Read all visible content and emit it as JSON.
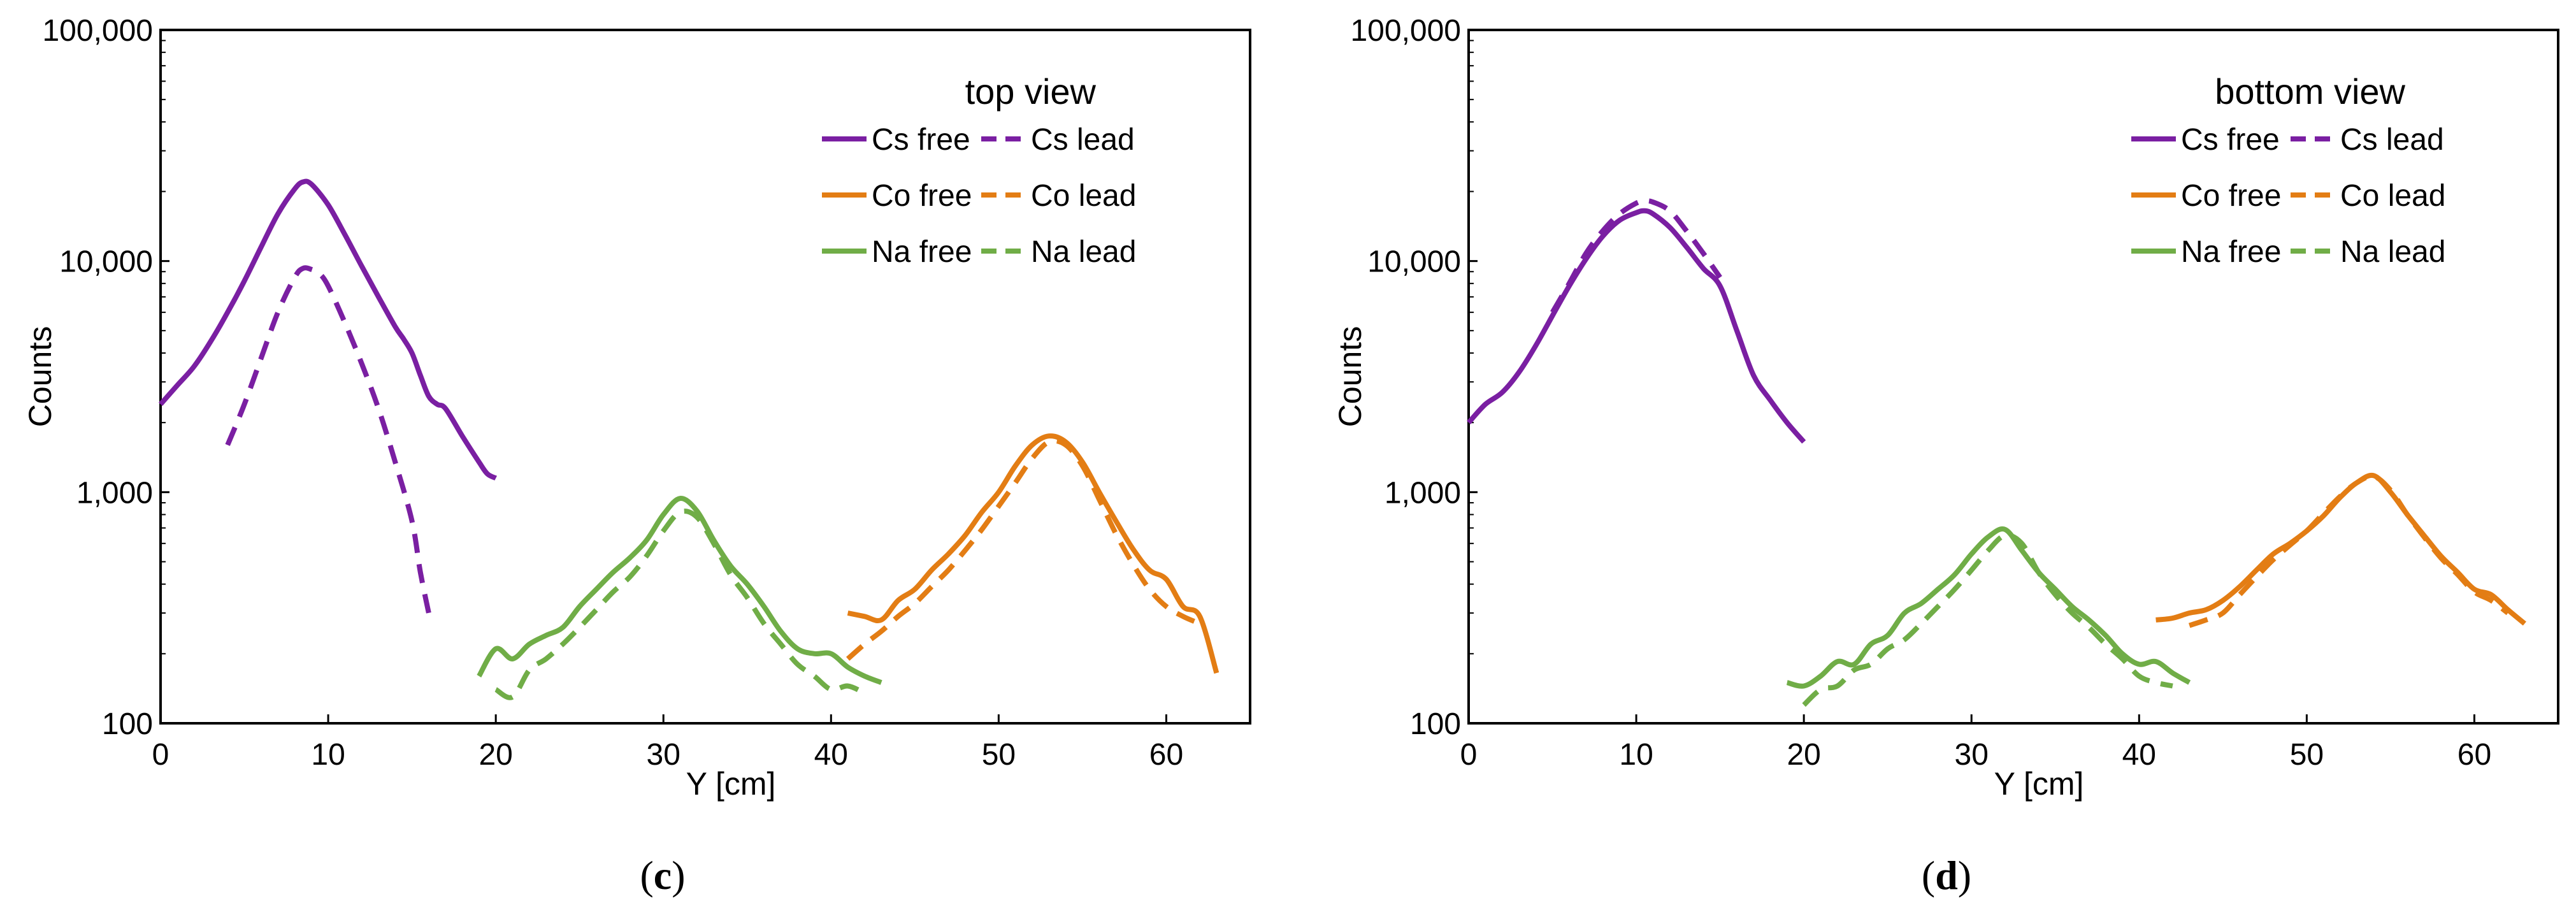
{
  "panels": [
    {
      "label": "(c)",
      "label_letter": "c",
      "chart_data": {
        "type": "line",
        "title": "top view",
        "xlabel": "Y [cm]",
        "ylabel": "Counts",
        "xlim": [
          0,
          65
        ],
        "ylim": [
          100,
          100000
        ],
        "yscale": "log",
        "xticks": [
          "0",
          "10",
          "20",
          "30",
          "40",
          "50",
          "60"
        ],
        "yticks": [
          "100",
          "1,000",
          "10,000",
          "100,000"
        ],
        "legend_placement": "top-right",
        "series": [
          {
            "name": "Cs free",
            "color": "#7a1fa2",
            "dash": "solid",
            "x": [
              0,
              1,
              2,
              3,
              4,
              5,
              6,
              7,
              8,
              8.5,
              9,
              10,
              11,
              12,
              13,
              14,
              14.5,
              15,
              15.5,
              16,
              16.5,
              17,
              18,
              19,
              19.5,
              20
            ],
            "y": [
              2400,
              2900,
              3500,
              4500,
              6000,
              8200,
              11500,
              16000,
              20500,
              22000,
              21500,
              17500,
              13000,
              9500,
              7000,
              5200,
              4600,
              4000,
              3200,
              2600,
              2400,
              2300,
              1750,
              1350,
              1200,
              1150
            ]
          },
          {
            "name": "Cs lead",
            "color": "#7a1fa2",
            "dash": "dashed",
            "x": [
              4,
              5,
              6,
              7,
              8,
              8.5,
              9,
              9.5,
              10,
              11,
              12,
              13,
              14,
              15,
              15.5,
              16
            ],
            "y": [
              1600,
              2400,
              3800,
              6000,
              8500,
              9300,
              9200,
              8800,
              7800,
              5400,
              3600,
              2300,
              1350,
              750,
              450,
              300
            ]
          },
          {
            "name": "Co free",
            "color": "#e37d14",
            "dash": "solid",
            "x": [
              41,
              42,
              43,
              44,
              45,
              46,
              47,
              48,
              49,
              50,
              51,
              52,
              53,
              54,
              55,
              56,
              57,
              58,
              59,
              60,
              61,
              62,
              63
            ],
            "y": [
              300,
              290,
              280,
              340,
              380,
              460,
              540,
              650,
              820,
              1000,
              1300,
              1600,
              1750,
              1650,
              1350,
              1000,
              750,
              570,
              460,
              420,
              320,
              290,
              165
            ]
          },
          {
            "name": "Co lead",
            "color": "#e37d14",
            "dash": "dashed",
            "x": [
              41,
              42,
              43,
              44,
              45,
              46,
              47,
              48,
              49,
              50,
              51,
              52,
              53,
              54,
              55,
              56,
              57,
              58,
              59,
              60,
              61,
              62
            ],
            "y": [
              190,
              220,
              250,
              290,
              330,
              390,
              460,
              560,
              690,
              870,
              1100,
              1400,
              1650,
              1600,
              1300,
              930,
              660,
              490,
              380,
              320,
              290,
              270
            ]
          },
          {
            "name": "Na free",
            "color": "#70ad47",
            "dash": "solid",
            "x": [
              19,
              20,
              21,
              22,
              23,
              24,
              25,
              26,
              27,
              28,
              29,
              30,
              31,
              32,
              33,
              34,
              35,
              36,
              37,
              38,
              39,
              40,
              41,
              42,
              43
            ],
            "y": [
              160,
              210,
              190,
              220,
              240,
              260,
              320,
              380,
              450,
              520,
              620,
              800,
              940,
              830,
              620,
              480,
              400,
              320,
              250,
              210,
              200,
              200,
              175,
              160,
              150
            ]
          },
          {
            "name": "Na lead",
            "color": "#70ad47",
            "dash": "dashed",
            "x": [
              20,
              21,
              22,
              23,
              24,
              25,
              26,
              27,
              28,
              29,
              30,
              31,
              32,
              33,
              34,
              35,
              36,
              37,
              38,
              39,
              40,
              41,
              42
            ],
            "y": [
              140,
              130,
              170,
              190,
              220,
              260,
              310,
              370,
              430,
              530,
              680,
              820,
              780,
              600,
              440,
              350,
              270,
              220,
              180,
              160,
              140,
              145,
              135
            ]
          }
        ]
      }
    },
    {
      "label": "(d)",
      "label_letter": "d",
      "chart_data": {
        "type": "line",
        "title": "bottom view",
        "xlabel": "Y [cm]",
        "ylabel": "Counts",
        "xlim": [
          0,
          65
        ],
        "ylim": [
          100,
          100000
        ],
        "yscale": "log",
        "xticks": [
          "0",
          "10",
          "20",
          "30",
          "40",
          "50",
          "60"
        ],
        "yticks": [
          "100",
          "1,000",
          "10,000",
          "100,000"
        ],
        "legend_placement": "top-right",
        "series": [
          {
            "name": "Cs free",
            "color": "#7a1fa2",
            "dash": "solid",
            "x": [
              0,
              1,
              2,
              3,
              4,
              5,
              6,
              7,
              8,
              9,
              10,
              10.5,
              11,
              12,
              13,
              14,
              15,
              16,
              17,
              18,
              19,
              20
            ],
            "y": [
              2000,
              2400,
              2700,
              3300,
              4300,
              5800,
              7800,
              10200,
              12800,
              15000,
              16200,
              16500,
              16000,
              14000,
              11500,
              9300,
              7800,
              5000,
              3200,
              2500,
              2000,
              1650
            ]
          },
          {
            "name": "Cs lead",
            "color": "#7a1fa2",
            "dash": "dashed",
            "x": [
              5,
              6,
              7,
              8,
              9,
              10,
              10.5,
              11,
              12,
              13,
              14,
              15
            ],
            "y": [
              6000,
              8000,
              10800,
              13500,
              16000,
              17800,
              18200,
              18000,
              16500,
              13500,
              10800,
              8500
            ]
          },
          {
            "name": "Co free",
            "color": "#e37d14",
            "dash": "solid",
            "x": [
              41,
              42,
              43,
              44,
              45,
              46,
              47,
              48,
              49,
              50,
              51,
              52,
              53,
              54,
              55,
              56,
              57,
              58,
              59,
              60,
              61,
              62,
              63
            ],
            "y": [
              280,
              285,
              300,
              310,
              340,
              390,
              460,
              540,
              600,
              680,
              790,
              950,
              1100,
              1180,
              1000,
              800,
              650,
              530,
              450,
              380,
              360,
              310,
              270
            ]
          },
          {
            "name": "Co lead",
            "color": "#e37d14",
            "dash": "dashed",
            "x": [
              43,
              44,
              45,
              46,
              47,
              48,
              49,
              50,
              51,
              52,
              53,
              54,
              55,
              56,
              57,
              58,
              59,
              60,
              61,
              62
            ],
            "y": [
              265,
              280,
              300,
              360,
              430,
              510,
              590,
              680,
              810,
              960,
              1100,
              1170,
              1020,
              800,
              640,
              520,
              440,
              370,
              340,
              300
            ]
          },
          {
            "name": "Na free",
            "color": "#70ad47",
            "dash": "solid",
            "x": [
              19,
              20,
              21,
              22,
              23,
              24,
              25,
              26,
              27,
              28,
              29,
              30,
              31,
              32,
              33,
              34,
              35,
              36,
              37,
              38,
              39,
              40,
              41,
              42,
              43
            ],
            "y": [
              150,
              145,
              160,
              185,
              180,
              220,
              240,
              300,
              330,
              380,
              440,
              540,
              640,
              690,
              560,
              450,
              380,
              320,
              280,
              240,
              200,
              180,
              185,
              165,
              150
            ]
          },
          {
            "name": "Na lead",
            "color": "#70ad47",
            "dash": "dashed",
            "x": [
              20,
              21,
              22,
              23,
              24,
              25,
              26,
              27,
              28,
              29,
              30,
              31,
              32,
              33,
              34,
              35,
              36,
              37,
              38,
              39,
              40,
              41,
              42
            ],
            "y": [
              120,
              140,
              145,
              170,
              180,
              210,
              230,
              270,
              320,
              380,
              460,
              560,
              650,
              600,
              450,
              360,
              300,
              260,
              220,
              190,
              160,
              150,
              145
            ]
          }
        ]
      }
    }
  ]
}
